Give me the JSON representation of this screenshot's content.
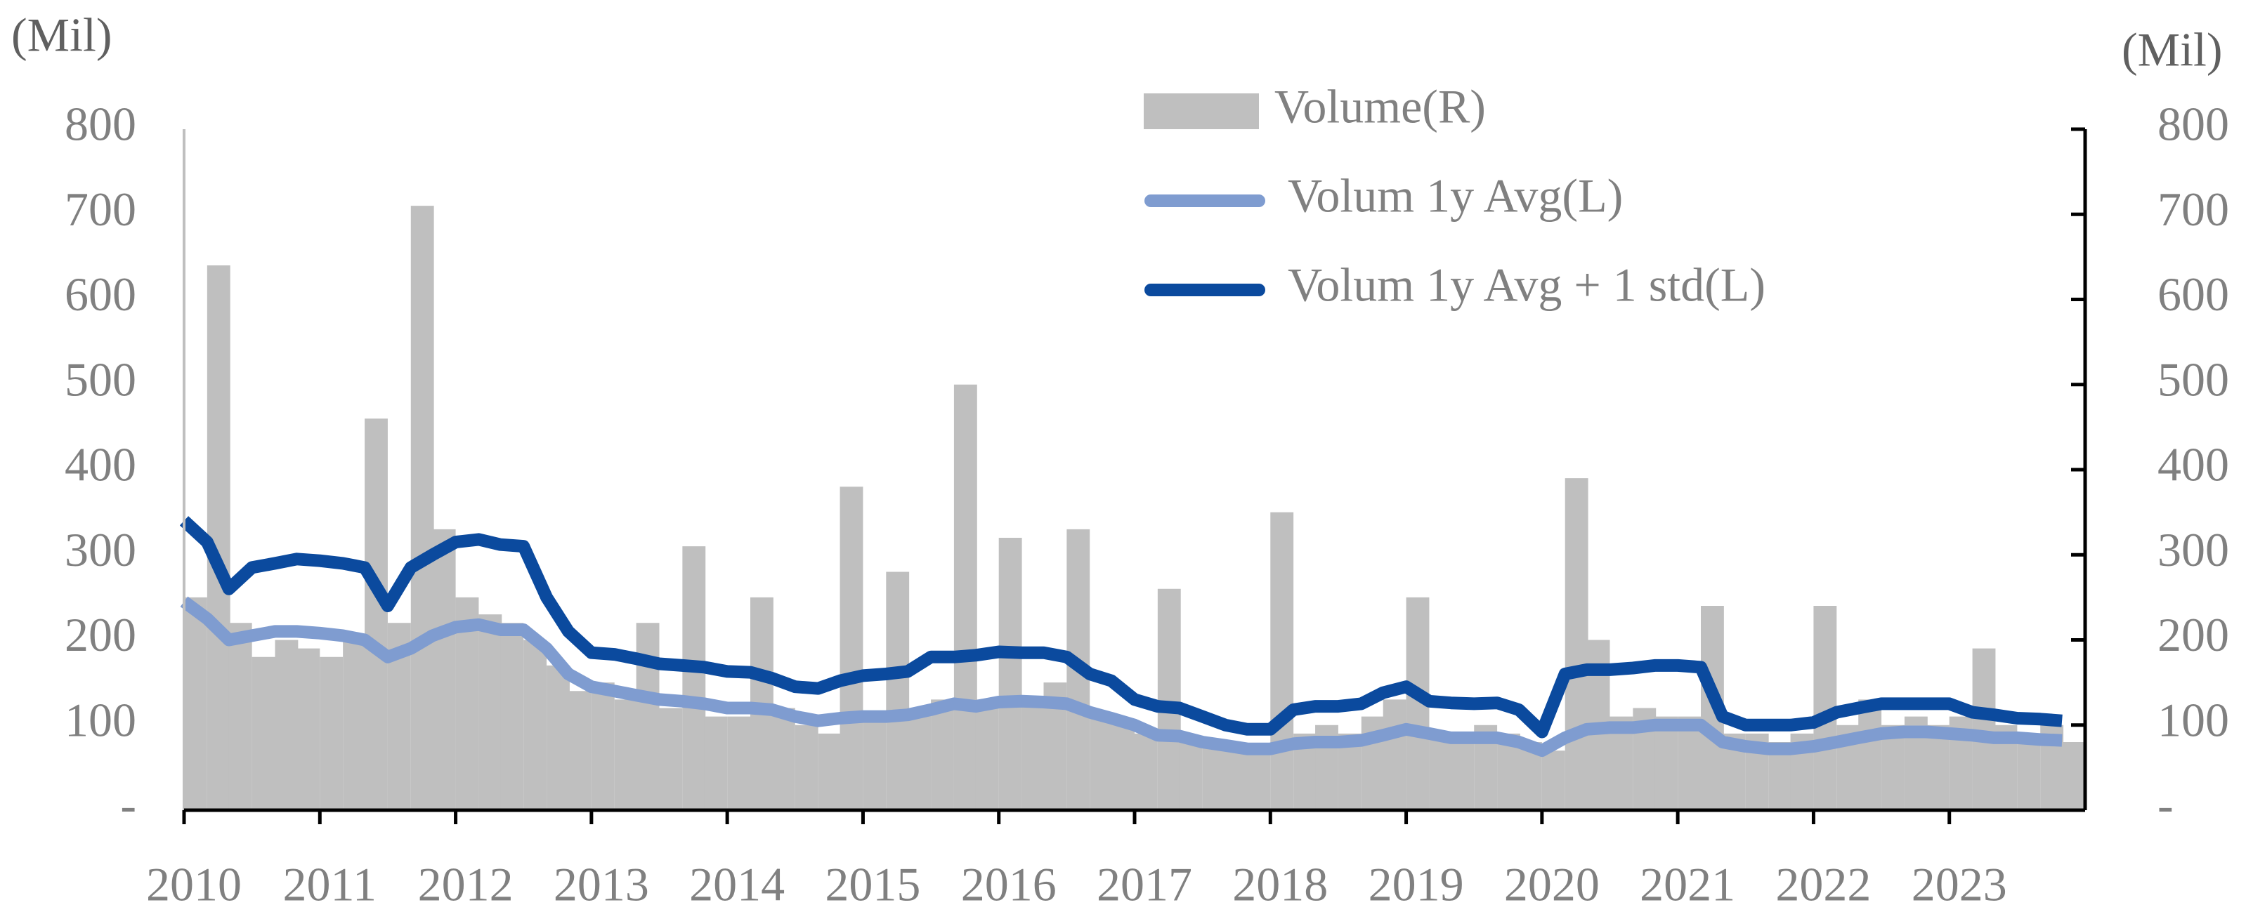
{
  "chart_data": {
    "type": "line",
    "y_unit_left": "(Mil)",
    "y_unit_right": "(Mil)",
    "x": [
      2010,
      2010.17,
      2010.33,
      2010.5,
      2010.67,
      2010.83,
      2011,
      2011.17,
      2011.33,
      2011.5,
      2011.67,
      2011.83,
      2012,
      2012.17,
      2012.33,
      2012.5,
      2012.67,
      2012.83,
      2013,
      2013.17,
      2013.33,
      2013.5,
      2013.67,
      2013.83,
      2014,
      2014.17,
      2014.33,
      2014.5,
      2014.67,
      2014.83,
      2015,
      2015.17,
      2015.33,
      2015.5,
      2015.67,
      2015.83,
      2016,
      2016.17,
      2016.33,
      2016.5,
      2016.67,
      2016.83,
      2017,
      2017.17,
      2017.33,
      2017.5,
      2017.67,
      2017.83,
      2018,
      2018.17,
      2018.33,
      2018.5,
      2018.67,
      2018.83,
      2019,
      2019.17,
      2019.33,
      2019.5,
      2019.67,
      2019.83,
      2020,
      2020.17,
      2020.33,
      2020.5,
      2020.67,
      2020.83,
      2021,
      2021.17,
      2021.33,
      2021.5,
      2021.67,
      2021.83,
      2022,
      2022.17,
      2022.33,
      2022.5,
      2022.67,
      2022.83,
      2023,
      2023.17,
      2023.33,
      2023.5,
      2023.67,
      2023.83
    ],
    "xlim": [
      2010,
      2024
    ],
    "xticks": [
      2010,
      2011,
      2012,
      2013,
      2014,
      2015,
      2016,
      2017,
      2018,
      2019,
      2020,
      2021,
      2022,
      2023
    ],
    "ylim": [
      0,
      800
    ],
    "yticks": [
      {
        "value": 0,
        "label": "-"
      },
      100,
      200,
      300,
      400,
      500,
      600,
      700,
      800
    ],
    "y2lim": [
      0,
      800
    ],
    "y2ticks": [
      {
        "value": 0,
        "label": "-"
      },
      100,
      200,
      300,
      400,
      500,
      600,
      700,
      800
    ],
    "series": [
      {
        "name": "Volume(R)",
        "type": "bar",
        "axis": "y2",
        "color": "#bfbfbf",
        "values": [
          250,
          640,
          220,
          180,
          200,
          190,
          180,
          200,
          460,
          220,
          710,
          330,
          250,
          230,
          220,
          200,
          170,
          140,
          150,
          130,
          220,
          120,
          310,
          110,
          110,
          250,
          120,
          100,
          90,
          380,
          110,
          280,
          120,
          130,
          500,
          130,
          320,
          130,
          150,
          330,
          110,
          100,
          90,
          260,
          80,
          80,
          70,
          70,
          350,
          90,
          100,
          90,
          110,
          130,
          250,
          90,
          80,
          100,
          90,
          80,
          70,
          390,
          200,
          110,
          120,
          110,
          110,
          240,
          90,
          90,
          80,
          90,
          240,
          100,
          130,
          100,
          110,
          100,
          110,
          190,
          100,
          90,
          100,
          80
        ]
      },
      {
        "name": "Volum 1y Avg(L)",
        "type": "line",
        "color": "#7f9cd0",
        "values": [
          245,
          225,
          200,
          205,
          210,
          210,
          208,
          205,
          200,
          180,
          190,
          205,
          215,
          218,
          212,
          212,
          190,
          160,
          145,
          140,
          135,
          130,
          128,
          125,
          120,
          120,
          118,
          110,
          105,
          108,
          110,
          110,
          112,
          118,
          125,
          122,
          127,
          128,
          127,
          125,
          115,
          108,
          100,
          88,
          87,
          80,
          76,
          72,
          72,
          78,
          80,
          80,
          82,
          88,
          95,
          90,
          85,
          85,
          85,
          80,
          70,
          85,
          95,
          97,
          97,
          100,
          100,
          100,
          80,
          75,
          72,
          72,
          75,
          80,
          85,
          90,
          92,
          92,
          90,
          88,
          85,
          85,
          83,
          82
        ]
      },
      {
        "name": "Volum 1y Avg + 1 std(L)",
        "type": "line",
        "color": "#0b4a9e",
        "values": [
          340,
          315,
          260,
          285,
          290,
          295,
          293,
          290,
          285,
          240,
          285,
          300,
          315,
          318,
          312,
          310,
          250,
          210,
          185,
          183,
          178,
          172,
          170,
          168,
          163,
          162,
          155,
          145,
          143,
          152,
          158,
          160,
          163,
          180,
          180,
          182,
          186,
          185,
          185,
          180,
          160,
          152,
          130,
          122,
          120,
          110,
          100,
          95,
          95,
          118,
          122,
          122,
          125,
          138,
          145,
          128,
          126,
          125,
          126,
          118,
          92,
          160,
          165,
          165,
          167,
          170,
          170,
          168,
          110,
          100,
          100,
          100,
          103,
          115,
          120,
          125,
          125,
          125,
          125,
          115,
          112,
          108,
          107,
          105
        ]
      }
    ]
  }
}
